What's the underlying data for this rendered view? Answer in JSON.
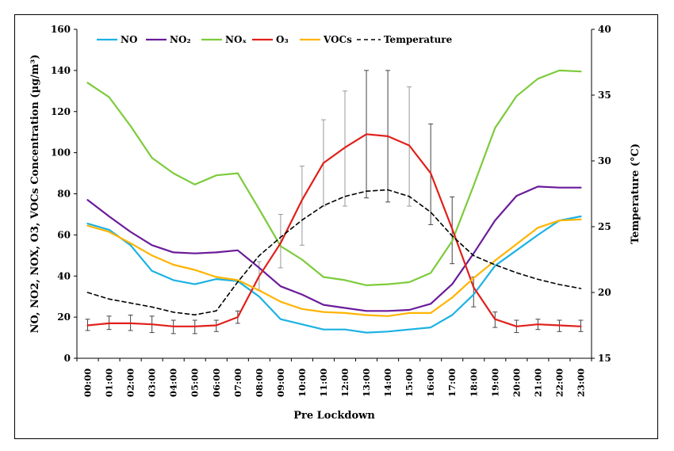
{
  "chart_data": {
    "type": "line",
    "title": "",
    "xlabel": "Pre Lockdown",
    "ylabel": "NO, NO2, NOX, O3, VOCs Concentration (µg/m³)",
    "y2label": "Temperature (°C)",
    "ylim": [
      0,
      160
    ],
    "y2lim": [
      15,
      40
    ],
    "yticks": [
      "0",
      "20",
      "40",
      "60",
      "80",
      "100",
      "120",
      "140",
      "160"
    ],
    "y2ticks": [
      "15",
      "20",
      "25",
      "30",
      "35",
      "40"
    ],
    "legend_position": "top",
    "categories": [
      "00:00",
      "01:00",
      "02:00",
      "03:00",
      "04:00",
      "05:00",
      "06:00",
      "07:00",
      "08:00",
      "09:00",
      "10:00",
      "11:00",
      "12:00",
      "13:00",
      "14:00",
      "15:00",
      "16:00",
      "17:00",
      "18:00",
      "19:00",
      "20:00",
      "21:00",
      "22:00",
      "23:00"
    ],
    "series": [
      {
        "name": "NO",
        "color": "#1cb2e3",
        "axis": "left",
        "dash": "",
        "values": [
          65.5,
          62.5,
          55,
          42.5,
          38,
          36,
          38.5,
          37.5,
          30,
          19,
          16.5,
          14,
          14,
          12.5,
          13,
          14,
          15,
          21,
          31,
          45,
          52.5,
          60,
          67,
          69
        ]
      },
      {
        "name": "NO₂",
        "color": "#6a1b9a",
        "axis": "left",
        "dash": "",
        "values": [
          77,
          69,
          61.5,
          55,
          51.5,
          51,
          51.5,
          52.5,
          44,
          35,
          31,
          26,
          24.5,
          23,
          23,
          23.5,
          26.5,
          36,
          51,
          67,
          79,
          83.5,
          83,
          83
        ]
      },
      {
        "name": "NOₓ",
        "color": "#7dcb3c",
        "axis": "left",
        "dash": "",
        "values": [
          134,
          127,
          113,
          97.5,
          90,
          84.5,
          89,
          90,
          72.5,
          54.5,
          48,
          39.5,
          38,
          35.5,
          36,
          37,
          41.5,
          57,
          84,
          112,
          127.5,
          136,
          140,
          139.5
        ]
      },
      {
        "name": "O₃",
        "color": "#e0201b",
        "axis": "left",
        "dash": "",
        "values": [
          16,
          17,
          17,
          16.5,
          15.5,
          15.5,
          16,
          20,
          40,
          56,
          77,
          95,
          102.5,
          109,
          108,
          103.5,
          90,
          63,
          34.5,
          19,
          15.5,
          16.5,
          16,
          15.5
        ]
      },
      {
        "name": "VOCs",
        "color": "#ffb400",
        "axis": "left",
        "dash": "",
        "values": [
          64.5,
          61.5,
          56,
          50,
          45.5,
          43,
          39.5,
          38,
          33,
          27.5,
          24,
          22.5,
          22,
          21,
          20.5,
          22,
          22,
          29.5,
          39,
          47.5,
          55.5,
          63.5,
          67,
          67.5
        ]
      },
      {
        "name": "Temperature",
        "color": "#000000",
        "axis": "right",
        "dash": "5,4",
        "values": [
          20,
          19.5,
          19.2,
          18.9,
          18.5,
          18.3,
          18.6,
          20.8,
          22.8,
          24.2,
          25.5,
          26.6,
          27.3,
          27.7,
          27.8,
          27.3,
          26.1,
          24.3,
          22.8,
          22.1,
          21.5,
          21,
          20.6,
          20.3
        ]
      }
    ],
    "error_bars": {
      "series": "O₃",
      "low": [
        13.5,
        14,
        13.5,
        12.5,
        12,
        12,
        13,
        17,
        33,
        44,
        55,
        74,
        74,
        78,
        76,
        74,
        65,
        46,
        25,
        15,
        12.5,
        14,
        13,
        13
      ],
      "high": [
        19,
        20.5,
        21,
        20.5,
        18.5,
        18.5,
        18.5,
        23,
        47,
        70,
        93.5,
        116,
        130,
        140,
        140,
        132,
        114,
        78.5,
        39.5,
        22.5,
        18.5,
        19,
        18.5,
        18.5
      ],
      "dark_indices": [
        0,
        1,
        2,
        3,
        4,
        5,
        6,
        7,
        13,
        14,
        16,
        17,
        18,
        19,
        20,
        21,
        22,
        23
      ]
    }
  }
}
